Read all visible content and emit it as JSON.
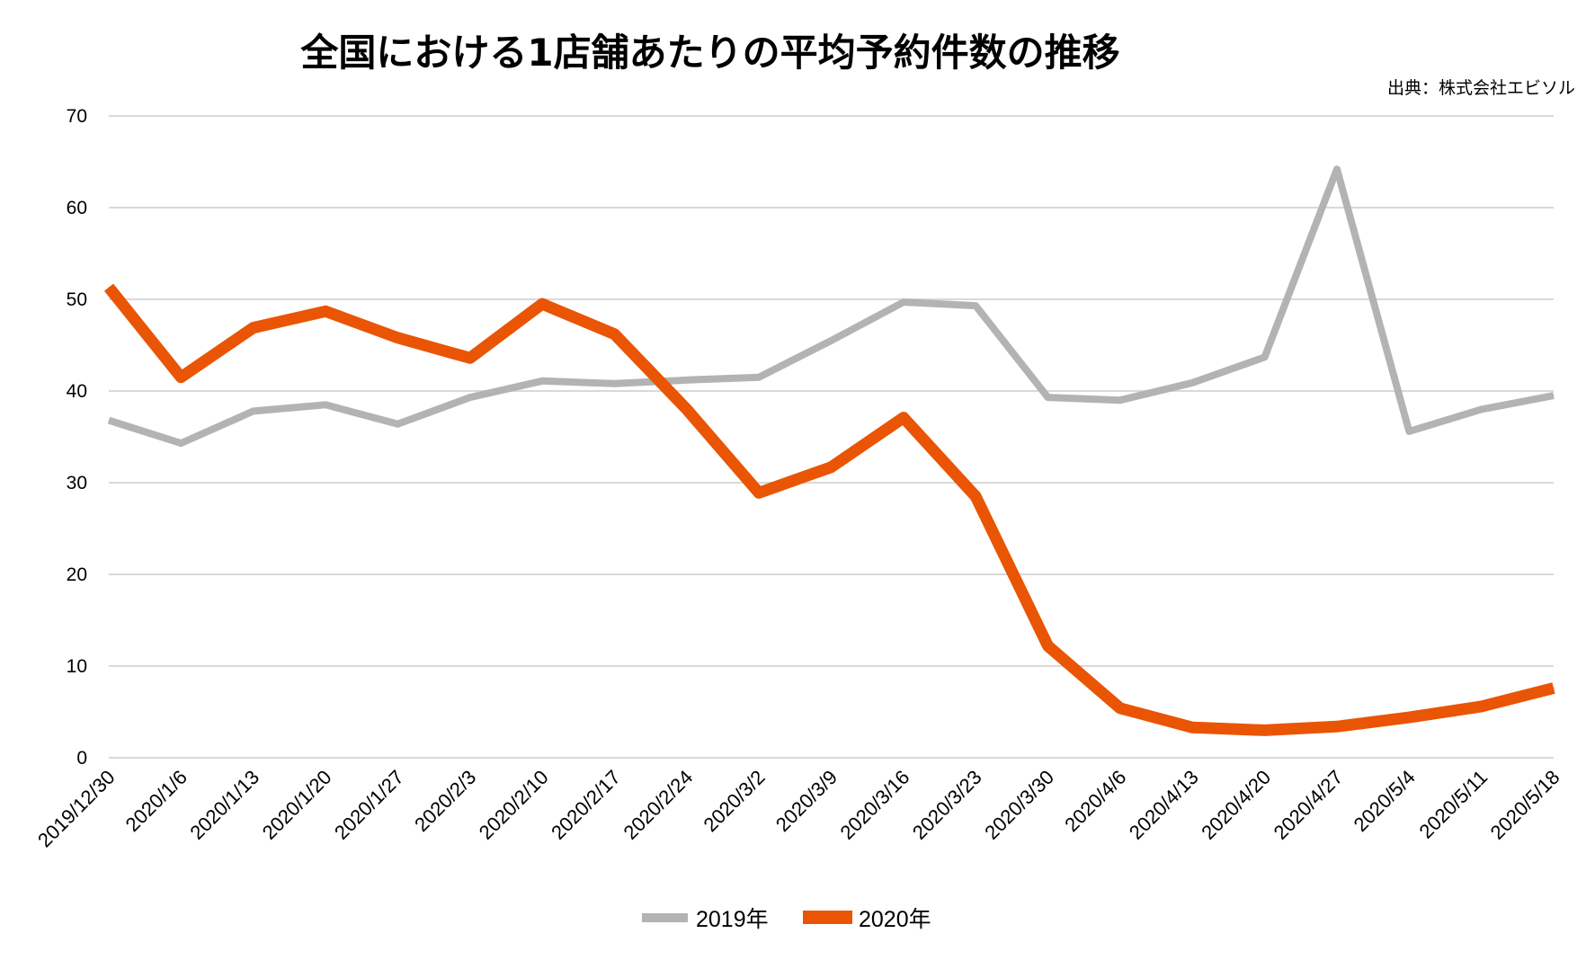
{
  "chart_data": {
    "type": "line",
    "title": "全国における1店舗あたりの平均予約件数の推移",
    "source": "出典：株式会社エビソル",
    "xlabel": "",
    "ylabel": "",
    "ylim": [
      0,
      70
    ],
    "yticks": [
      "0",
      "10",
      "20",
      "30",
      "40",
      "50",
      "60",
      "70"
    ],
    "ytick_values": [
      0,
      10,
      20,
      30,
      40,
      50,
      60,
      70
    ],
    "grid": true,
    "legend_position": "bottom",
    "categories": [
      "2019/12/30",
      "2020/1/6",
      "2020/1/13",
      "2020/1/20",
      "2020/1/27",
      "2020/2/3",
      "2020/2/10",
      "2020/2/17",
      "2020/2/24",
      "2020/3/2",
      "2020/3/9",
      "2020/3/16",
      "2020/3/23",
      "2020/3/30",
      "2020/4/6",
      "2020/4/13",
      "2020/4/20",
      "2020/4/27",
      "2020/5/4",
      "2020/5/11",
      "2020/5/18"
    ],
    "series": [
      {
        "name": "2019年",
        "color": "#b3b3b3",
        "values": [
          36.8,
          34.3,
          37.8,
          38.5,
          36.4,
          39.3,
          41.1,
          40.8,
          41.2,
          41.5,
          45.5,
          49.7,
          49.3,
          39.3,
          39.0,
          40.9,
          43.7,
          64.2,
          35.6,
          38.0,
          39.5
        ]
      },
      {
        "name": "2020年",
        "color": "#e95504",
        "values": [
          51.3,
          41.5,
          46.9,
          48.7,
          45.8,
          43.6,
          49.5,
          46.2,
          38.0,
          28.9,
          31.7,
          37.1,
          28.5,
          12.2,
          5.4,
          3.3,
          3.0,
          3.4,
          4.4,
          5.6,
          7.6
        ]
      }
    ]
  }
}
